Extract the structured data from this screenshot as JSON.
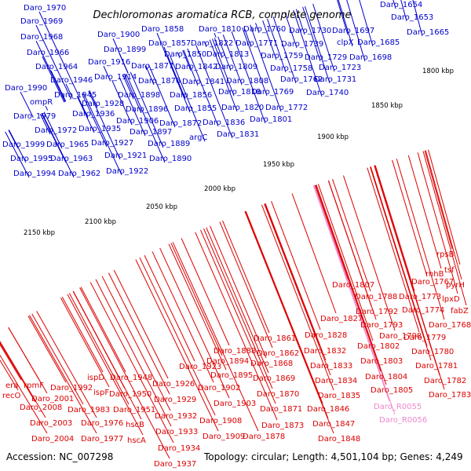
{
  "title": "Dechloromonas aromatica RCB, complete genome",
  "footer": {
    "accession": "Accession: NC_007298",
    "stats": "Topology: circular; Length: 4,501,104 bp; Genes: 4,249"
  },
  "colors": {
    "forward_label": "#0000cc",
    "reverse_label": "#dd0000",
    "rna_label": "#ee88cc",
    "forward_arrow": "#1a1aff",
    "reverse_arrow": "#ff1a1a",
    "backbone": "#888888",
    "cog_green": "#1aa01a"
  },
  "ticks": [
    "1800 kbp",
    "1850 kbp",
    "1900 kbp",
    "1950 kbp",
    "2000 kbp",
    "2050 kbp",
    "2100 kbp",
    "2150 kbp"
  ],
  "forward_labels": [
    "Daro_1970",
    "Daro_1969",
    "Daro_1968",
    "Daro_1966",
    "Daro_1964",
    "Daro_1990",
    "ompR",
    "Daro_1979",
    "Daro_1999",
    "Daro_1995",
    "Daro_1994",
    "Daro_1946",
    "Daro_1945",
    "Daro_1972",
    "Daro_1965",
    "Daro_1963",
    "Daro_1962",
    "Daro_1936",
    "Daro_1935",
    "Daro_1928",
    "Daro_1927",
    "Daro_1921",
    "Daro_1922",
    "Daro_1914",
    "Daro_1916",
    "Daro_1900",
    "Daro_1899",
    "Daro_1898",
    "Daro_1896",
    "Daro_1906",
    "Daro_1897",
    "Daro_1889",
    "Daro_1890",
    "Daro_1858",
    "Daro_1857",
    "Daro_1877",
    "Daro_1876",
    "Daro_1872",
    "Daro_1850",
    "Daro_1842",
    "Daro_1841",
    "Daro_1856",
    "Daro_1855",
    "argC",
    "Daro_1822",
    "Daro_1810",
    "Daro_1813",
    "Daro_1809",
    "Daro_1808",
    "Daro_1818",
    "Daro_1836",
    "Daro_1820",
    "Daro_1831",
    "Daro_1771",
    "Daro_1760",
    "Daro_1769",
    "Daro_1772",
    "Daro_1801",
    "Daro_1759",
    "Daro_1758",
    "Daro_1762",
    "Daro_1730",
    "Daro_1739",
    "Daro_1729",
    "Daro_1723",
    "Daro_1731",
    "Daro_1740",
    "clpX",
    "Daro_1697",
    "Daro_1685",
    "Daro_1698",
    "Daro_1654",
    "Daro_1653",
    "Daro_1665"
  ],
  "reverse_labels": [
    "rpsB",
    "tsf",
    "rnhB",
    "pyrH",
    "Daro_1767",
    "lpxD",
    "fabZ",
    "Daro_1807",
    "Daro_1788",
    "Daro_1773",
    "Daro_1792",
    "Daro_1774",
    "Daro_1793",
    "Daro_1768",
    "Daro_1798",
    "Daro_1779",
    "Daro_1802",
    "Daro_1780",
    "Daro_1803",
    "Daro_1781",
    "Daro_1804",
    "Daro_1782",
    "Daro_1805",
    "Daro_1783",
    "Daro_1827",
    "Daro_1828",
    "Daro_1832",
    "Daro_1833",
    "Daro_1834",
    "Daro_1835",
    "Daro_1846",
    "Daro_1847",
    "Daro_1848",
    "Daro_1861",
    "Daro_1862",
    "Daro_1868",
    "Daro_1869",
    "Daro_1870",
    "Daro_1871",
    "Daro_1873",
    "Daro_1878",
    "Daro_1888",
    "Daro_1894",
    "Daro_1895",
    "Daro_1902",
    "Daro_1903",
    "Daro_1908",
    "Daro_1909",
    "Daro_1923",
    "Daro_1926",
    "Daro_1929",
    "Daro_1932",
    "Daro_1933",
    "Daro_1934",
    "Daro_1937",
    "Daro_1948",
    "Daro_1950",
    "Daro_1951",
    "hscB",
    "hscA",
    "ispD",
    "ispF",
    "Daro_1983",
    "Daro_1976",
    "Daro_1977",
    "Daro_1992",
    "rpmF",
    "Daro_2001",
    "Daro_2008",
    "Daro_2003",
    "Daro_2004",
    "era",
    "recO"
  ],
  "rna_labels": [
    "Daro_R0055",
    "Daro_R0056"
  ]
}
